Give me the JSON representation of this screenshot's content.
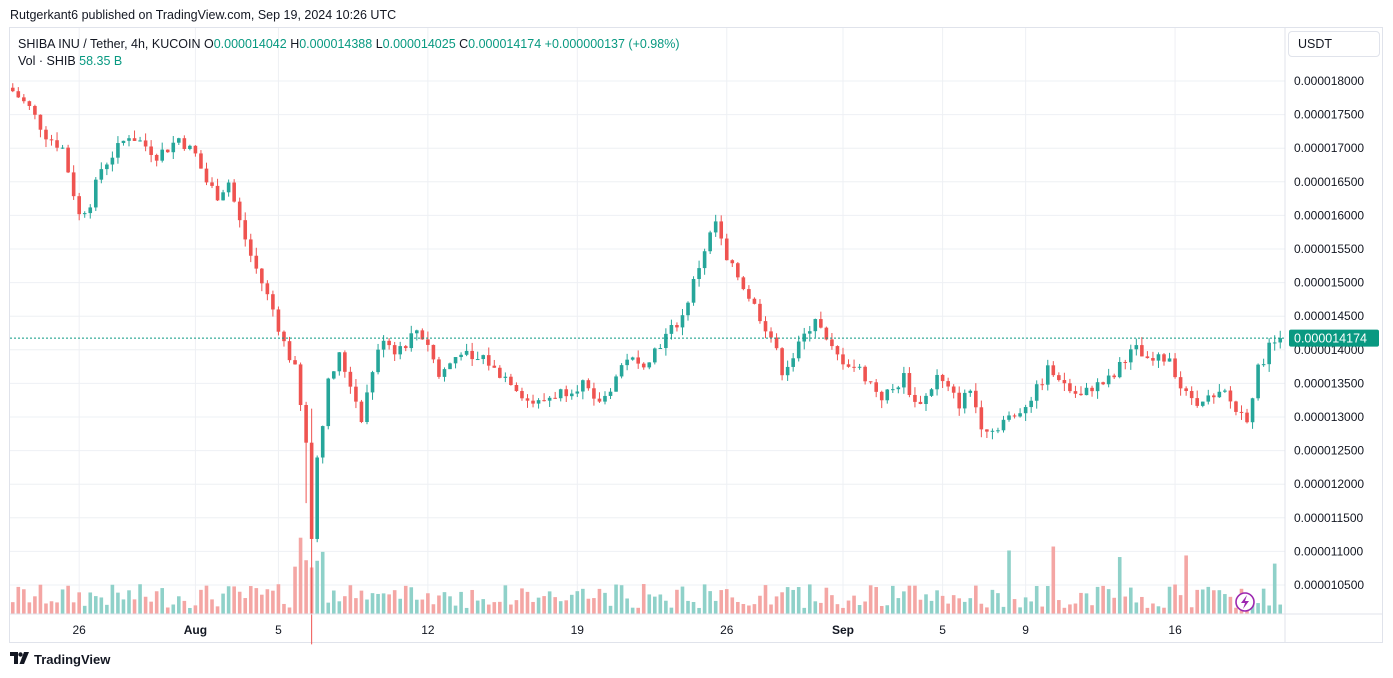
{
  "publisher": "Rutgerkant6 published on TradingView.com, Sep 19, 2024 10:26 UTC",
  "legend": {
    "symbol": "SHIBA INU / Tether, 4h, KUCOIN",
    "o_label": "O",
    "o": "0.000014042",
    "h_label": "H",
    "h": "0.000014388",
    "l_label": "L",
    "l": "0.000014025",
    "c_label": "C",
    "c": "0.000014174",
    "change": "+0.000000137 (+0.98%)",
    "vol_label": "Vol · SHIB",
    "vol_value": "58.35 B"
  },
  "currency": "USDT",
  "last_price_label": "0.000014174",
  "footer": "TradingView",
  "colors": {
    "up": "#26a69a",
    "down": "#ef5350",
    "vol_up": "#8fd1c9",
    "vol_down": "#f4a6a4",
    "grid": "#eef0f4",
    "last_price": "#089981",
    "alert": "#9c27b0"
  },
  "icons": {
    "alert": "lightning-bolt-icon",
    "logo": "tradingview-logo-icon"
  },
  "chart_data": {
    "type": "candlestick",
    "title": "SHIBA INU / Tether, 4h, KUCOIN",
    "yaxis_ticks": [
      "0.000018000",
      "0.000017500",
      "0.000017000",
      "0.000016500",
      "0.000016000",
      "0.000015500",
      "0.000015000",
      "0.000014500",
      "0.000014000",
      "0.000013500",
      "0.000013000",
      "0.000012500",
      "0.000012000",
      "0.000011500",
      "0.000011000",
      "0.000010500"
    ],
    "ylim": [
      1.02e-05,
      1.83e-05
    ],
    "xaxis_ticks": [
      "26",
      "Aug",
      "5",
      "12",
      "19",
      "26",
      "Sep",
      "5",
      "9",
      "16"
    ],
    "xaxis_tick_index": [
      12,
      33,
      48,
      75,
      102,
      129,
      150,
      168,
      183,
      210
    ],
    "bar_count": 230,
    "last_price": 1.4174e-05,
    "close_series_anchors": [
      [
        0,
        17.85
      ],
      [
        3,
        17.6
      ],
      [
        6,
        17.2
      ],
      [
        9,
        17.0
      ],
      [
        12,
        16.0
      ],
      [
        14,
        16.2
      ],
      [
        16,
        16.7
      ],
      [
        18,
        16.9
      ],
      [
        21,
        17.2
      ],
      [
        23,
        17.1
      ],
      [
        26,
        16.9
      ],
      [
        28,
        17.0
      ],
      [
        30,
        17.15
      ],
      [
        33,
        16.9
      ],
      [
        35,
        16.5
      ],
      [
        37,
        16.3
      ],
      [
        39,
        16.5
      ],
      [
        41,
        15.9
      ],
      [
        43,
        15.4
      ],
      [
        45,
        15.0
      ],
      [
        47,
        14.6
      ],
      [
        49,
        14.1
      ],
      [
        51,
        13.7
      ],
      [
        53,
        12.6
      ],
      [
        54,
        11.2
      ],
      [
        55,
        12.4
      ],
      [
        57,
        13.5
      ],
      [
        59,
        13.9
      ],
      [
        61,
        13.5
      ],
      [
        63,
        13.0
      ],
      [
        65,
        13.7
      ],
      [
        67,
        14.2
      ],
      [
        69,
        14.0
      ],
      [
        71,
        14.1
      ],
      [
        73,
        14.3
      ],
      [
        75,
        14.1
      ],
      [
        77,
        13.6
      ],
      [
        79,
        13.8
      ],
      [
        81,
        14.0
      ],
      [
        83,
        13.8
      ],
      [
        85,
        13.9
      ],
      [
        87,
        13.7
      ],
      [
        90,
        13.55
      ],
      [
        93,
        13.25
      ],
      [
        95,
        13.2
      ],
      [
        97,
        13.3
      ],
      [
        100,
        13.4
      ],
      [
        103,
        13.5
      ],
      [
        105,
        13.2
      ],
      [
        107,
        13.3
      ],
      [
        109,
        13.6
      ],
      [
        111,
        13.9
      ],
      [
        113,
        13.75
      ],
      [
        115,
        13.9
      ],
      [
        117,
        14.1
      ],
      [
        119,
        14.3
      ],
      [
        121,
        14.5
      ],
      [
        123,
        15.0
      ],
      [
        125,
        15.5
      ],
      [
        127,
        15.9
      ],
      [
        128,
        15.6
      ],
      [
        129,
        15.3
      ],
      [
        131,
        15.1
      ],
      [
        133,
        14.8
      ],
      [
        135,
        14.5
      ],
      [
        137,
        14.2
      ],
      [
        139,
        13.7
      ],
      [
        141,
        13.9
      ],
      [
        143,
        14.2
      ],
      [
        145,
        14.5
      ],
      [
        147,
        14.1
      ],
      [
        149,
        13.9
      ],
      [
        151,
        13.8
      ],
      [
        153,
        13.7
      ],
      [
        155,
        13.5
      ],
      [
        157,
        13.3
      ],
      [
        159,
        13.4
      ],
      [
        161,
        13.6
      ],
      [
        163,
        13.2
      ],
      [
        165,
        13.3
      ],
      [
        167,
        13.6
      ],
      [
        169,
        13.4
      ],
      [
        171,
        13.2
      ],
      [
        173,
        13.4
      ],
      [
        175,
        12.9
      ],
      [
        177,
        12.8
      ],
      [
        179,
        12.95
      ],
      [
        181,
        13.0
      ],
      [
        183,
        13.2
      ],
      [
        185,
        13.4
      ],
      [
        187,
        13.7
      ],
      [
        189,
        13.6
      ],
      [
        191,
        13.4
      ],
      [
        193,
        13.3
      ],
      [
        195,
        13.45
      ],
      [
        197,
        13.5
      ],
      [
        199,
        13.6
      ],
      [
        201,
        13.9
      ],
      [
        203,
        14.0
      ],
      [
        205,
        13.8
      ],
      [
        207,
        13.85
      ],
      [
        209,
        13.9
      ],
      [
        211,
        13.45
      ],
      [
        213,
        13.2
      ],
      [
        215,
        13.3
      ],
      [
        217,
        13.25
      ],
      [
        219,
        13.35
      ],
      [
        221,
        13.1
      ],
      [
        223,
        13.0
      ],
      [
        225,
        13.7
      ],
      [
        227,
        14.05
      ],
      [
        229,
        14.174
      ]
    ],
    "volume_unit": "B SHIB",
    "last_volume": 58.35
  }
}
